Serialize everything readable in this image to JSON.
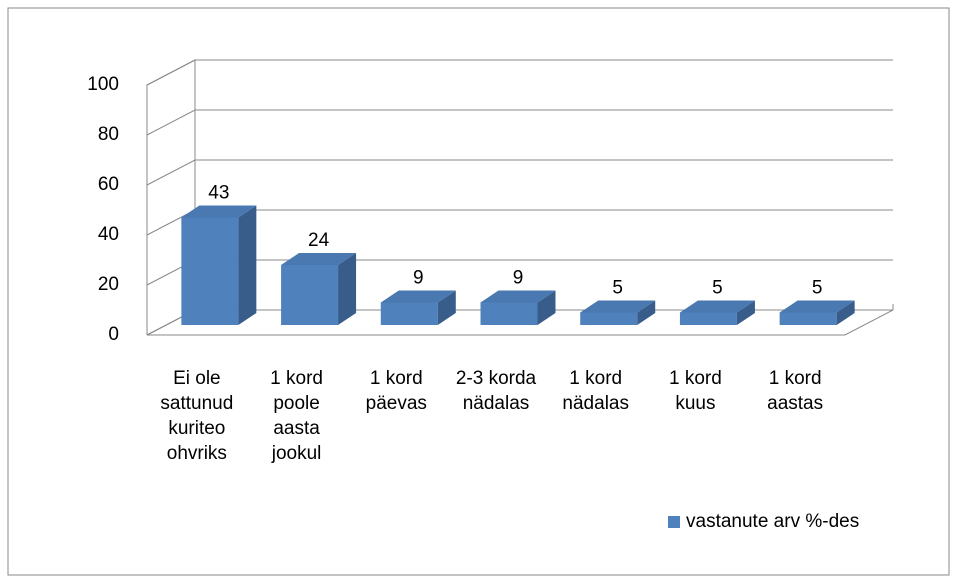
{
  "chart_data": {
    "type": "bar3d",
    "categories": [
      "Ei ole sattunud kuriteo ohvriks",
      "1 kord poole aasta jookul",
      "1 kord päevas",
      "2-3 korda nädalas",
      "1 kord nädalas",
      "1 kord kuus",
      "1 kord aastas"
    ],
    "series": [
      {
        "name": "vastanute arv %-des",
        "color": "#4f81bd",
        "values": [
          43,
          24,
          9,
          9,
          5,
          5,
          5
        ]
      }
    ],
    "ylim": [
      0,
      100
    ],
    "yticks": [
      0,
      20,
      40,
      60,
      80,
      100
    ],
    "grid": true,
    "legend": "bottom-right"
  }
}
